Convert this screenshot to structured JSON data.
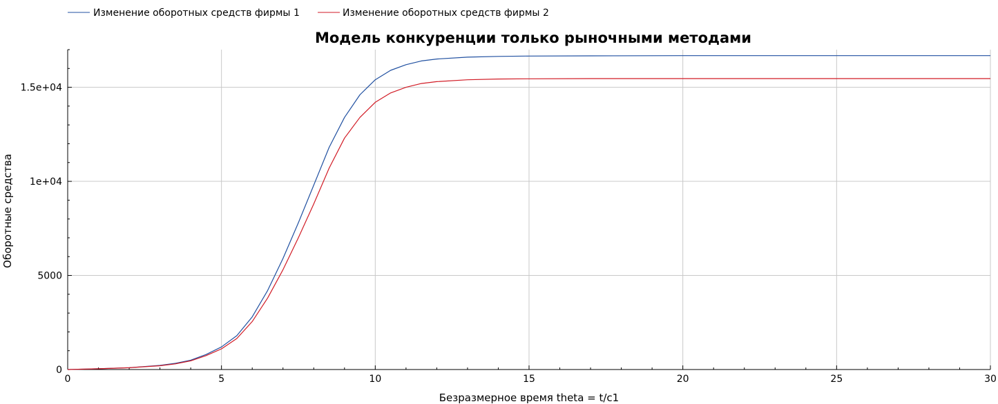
{
  "chart_data": {
    "type": "line",
    "title": "Модель конкуренции только рыночными методами",
    "xlabel": "Безразмерное время theta = t/c1",
    "ylabel": "Оборотные средства",
    "xlim": [
      0,
      30
    ],
    "ylim": [
      0,
      17000
    ],
    "x_ticks": [
      0,
      5,
      10,
      15,
      20,
      25,
      30
    ],
    "x_tick_labels": [
      "0",
      "5",
      "10",
      "15",
      "20",
      "25",
      "30"
    ],
    "y_ticks": [
      0,
      5000,
      10000,
      15000
    ],
    "y_tick_labels": [
      "0",
      "5000",
      "1e+04",
      "1.5e+04"
    ],
    "grid": true,
    "legend_position": "top-left",
    "series": [
      {
        "name": "Изменение оборотных средств фирмы 1",
        "color": "#1f4fa0",
        "x": [
          0,
          1,
          2,
          3,
          3.5,
          4,
          4.5,
          5,
          5.5,
          6,
          6.5,
          7,
          7.5,
          8,
          8.5,
          9,
          9.5,
          10,
          10.5,
          11,
          11.5,
          12,
          13,
          14,
          15,
          17,
          20,
          25,
          30
        ],
        "y": [
          0,
          40,
          100,
          220,
          330,
          500,
          800,
          1200,
          1800,
          2800,
          4200,
          5900,
          7800,
          9800,
          11800,
          13400,
          14600,
          15400,
          15900,
          16200,
          16400,
          16500,
          16600,
          16640,
          16660,
          16670,
          16680,
          16680,
          16680
        ]
      },
      {
        "name": "Изменение оборотных средств фирмы 2",
        "color": "#d11a24",
        "x": [
          0,
          1,
          2,
          3,
          3.5,
          4,
          4.5,
          5,
          5.5,
          6,
          6.5,
          7,
          7.5,
          8,
          8.5,
          9,
          9.5,
          10,
          10.5,
          11,
          11.5,
          12,
          13,
          14,
          15,
          17,
          20,
          25,
          30
        ],
        "y": [
          0,
          40,
          95,
          200,
          300,
          460,
          740,
          1100,
          1650,
          2550,
          3800,
          5300,
          7000,
          8800,
          10700,
          12300,
          13400,
          14200,
          14700,
          15000,
          15200,
          15300,
          15400,
          15440,
          15450,
          15460,
          15460,
          15460,
          15460
        ]
      }
    ]
  }
}
